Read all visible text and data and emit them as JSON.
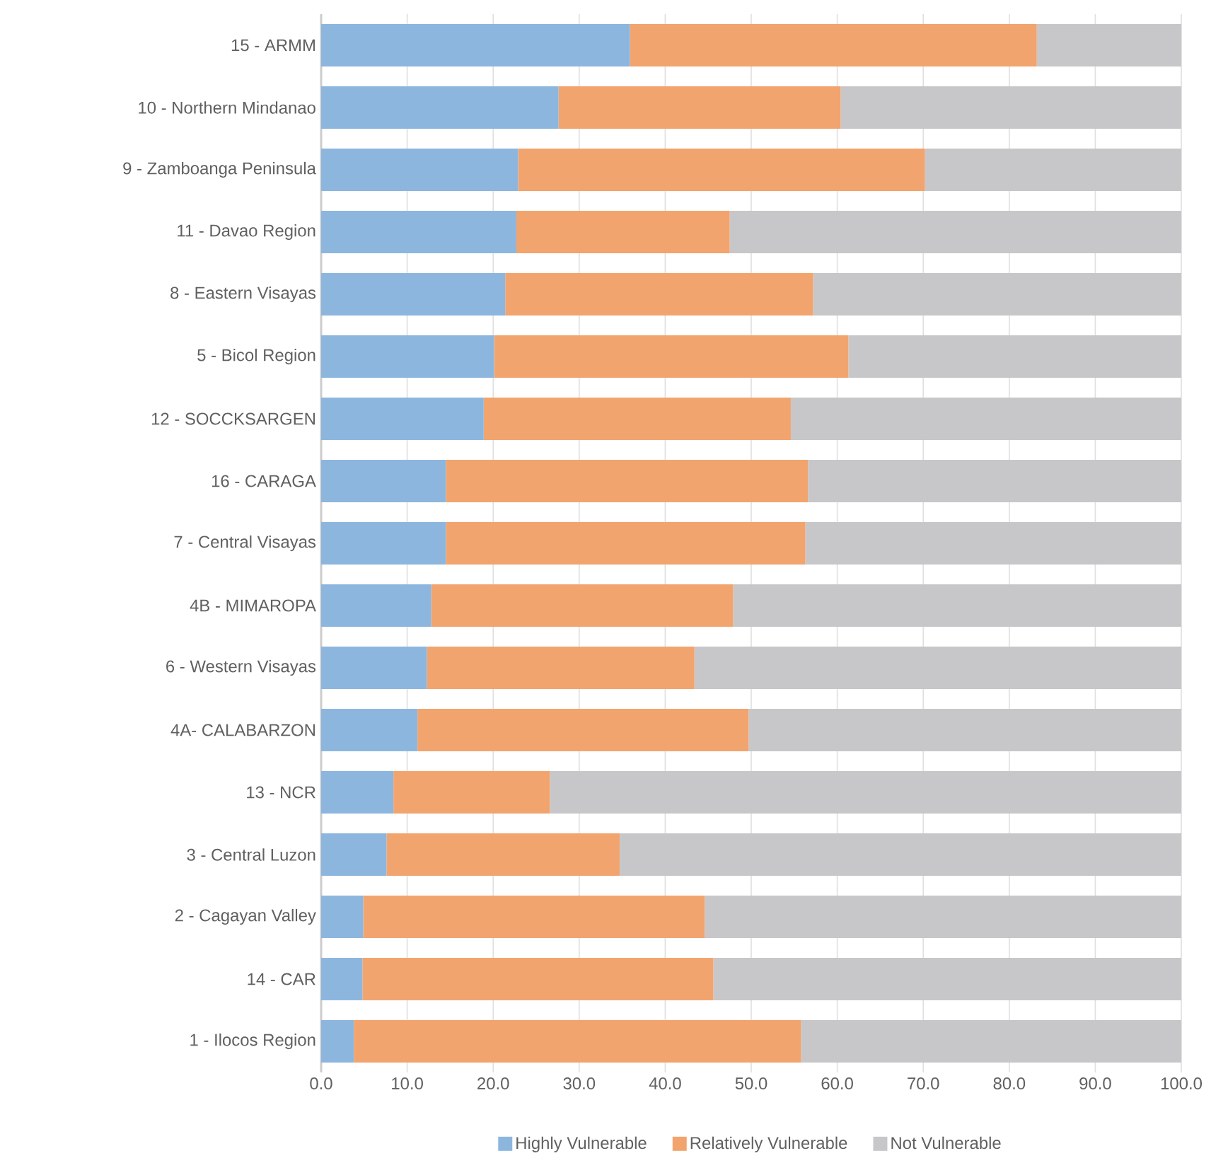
{
  "chart_data": {
    "type": "bar",
    "orientation": "horizontal",
    "stacked": true,
    "categories": [
      "15 - ARMM",
      "10 - Northern Mindanao",
      "9 - Zamboanga Peninsula",
      "11 - Davao Region",
      "8 - Eastern Visayas",
      "5 - Bicol Region",
      "12 - SOCCKSARGEN",
      "16 - CARAGA",
      "7 - Central Visayas",
      "4B - MIMAROPA",
      "6 - Western Visayas",
      "4A- CALABARZON",
      "13 - NCR",
      "3 - Central Luzon",
      "2 - Cagayan Valley",
      "14 - CAR",
      "1 - Ilocos Region"
    ],
    "series": [
      {
        "name": "Highly Vulnerable",
        "color": "#8db6de",
        "values": [
          35.9,
          27.6,
          22.9,
          22.7,
          21.4,
          20.1,
          18.9,
          14.5,
          14.5,
          12.8,
          12.3,
          11.2,
          8.4,
          7.6,
          4.9,
          4.8,
          3.8
        ]
      },
      {
        "name": "Relatively Vulnerable",
        "color": "#f2a46e",
        "values": [
          47.3,
          32.8,
          47.3,
          24.8,
          35.8,
          41.2,
          35.7,
          42.1,
          41.8,
          35.1,
          31.1,
          38.5,
          18.2,
          27.1,
          39.7,
          40.8,
          52.0
        ]
      },
      {
        "name": "Not Vulnerable",
        "color": "#c7c7c9",
        "values": [
          16.8,
          39.6,
          29.8,
          52.5,
          42.8,
          38.7,
          45.4,
          43.4,
          43.7,
          52.1,
          56.6,
          50.3,
          73.4,
          65.3,
          55.4,
          54.4,
          44.2
        ]
      }
    ],
    "xlim": [
      0,
      100
    ],
    "xticks": [
      {
        "value": 0,
        "label": "0.0"
      },
      {
        "value": 10,
        "label": "10.0"
      },
      {
        "value": 20,
        "label": "20.0"
      },
      {
        "value": 30,
        "label": "30.0"
      },
      {
        "value": 40,
        "label": "40.0"
      },
      {
        "value": 50,
        "label": "50.0"
      },
      {
        "value": 60,
        "label": "60.0"
      },
      {
        "value": 70,
        "label": "70.0"
      },
      {
        "value": 80,
        "label": "80.0"
      },
      {
        "value": 90,
        "label": "90.0"
      },
      {
        "value": 100,
        "label": "100.0"
      }
    ],
    "grid": "x",
    "legend": "bottom"
  }
}
